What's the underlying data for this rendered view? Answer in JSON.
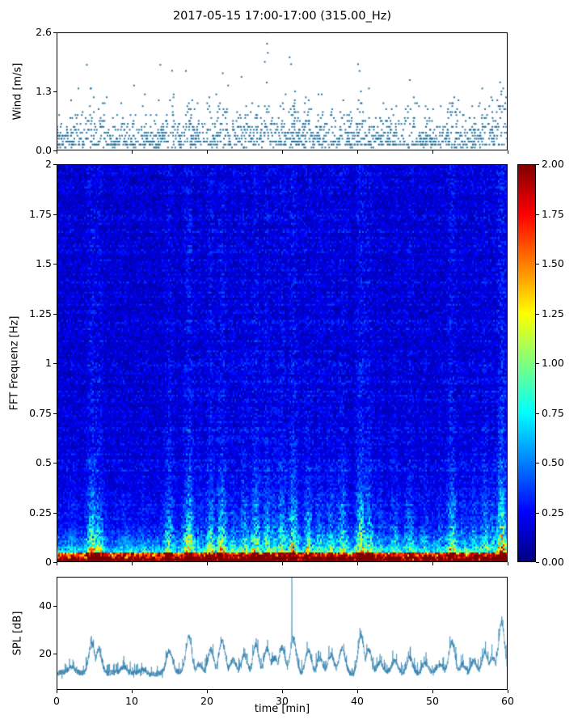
{
  "figure": {
    "title": "2017-05-15 17:00-17:00 (315.00_Hz)",
    "background": "#ffffff"
  },
  "chart_data": [
    {
      "type": "scatter",
      "title": "",
      "ylabel": "Wind [m/s]",
      "xlim": [
        0,
        60
      ],
      "ylim": [
        0.0,
        2.6
      ],
      "yticks": [
        {
          "v": 0.0,
          "label": "0.0"
        },
        {
          "v": 1.3,
          "label": "1.3"
        },
        {
          "v": 2.6,
          "label": "2.6"
        }
      ],
      "marker_color": "#27739e",
      "seed": 7,
      "n_points": 1600,
      "y_quantum": 0.065,
      "typical_range": [
        0.1,
        1.3
      ],
      "summary": "dense quantized scatter of wind speed, mostly 0.1-1.3 m/s, gusty peaks tracking the SPL events",
      "outliers": [
        [
          27.9,
          2.6
        ],
        [
          28.0,
          2.35
        ],
        [
          28.1,
          2.15
        ],
        [
          27.7,
          1.95
        ],
        [
          31.0,
          2.05
        ],
        [
          31.2,
          1.9
        ],
        [
          17.2,
          1.75
        ],
        [
          22.1,
          1.7
        ],
        [
          24.6,
          1.62
        ],
        [
          40.1,
          1.9
        ],
        [
          40.3,
          1.75
        ],
        [
          47.0,
          1.55
        ],
        [
          59.0,
          1.5
        ]
      ]
    },
    {
      "type": "heatmap",
      "ylabel": "FFT Frequenz [Hz]",
      "xlim": [
        0,
        60
      ],
      "ylim": [
        0,
        2
      ],
      "vmin": 0,
      "vmax": 2,
      "colormap": "jet",
      "seed": 11,
      "yticks": [
        {
          "v": 0,
          "label": "0"
        },
        {
          "v": 0.25,
          "label": "0.25"
        },
        {
          "v": 0.5,
          "label": "0.5"
        },
        {
          "v": 0.75,
          "label": "0.75"
        },
        {
          "v": 1,
          "label": "1"
        },
        {
          "v": 1.25,
          "label": "1.25"
        },
        {
          "v": 1.5,
          "label": "1.5"
        },
        {
          "v": 1.75,
          "label": "1.75"
        },
        {
          "v": 2,
          "label": "2"
        }
      ],
      "colorbar": {
        "ticks": [
          {
            "v": 0.0,
            "label": "0.00"
          },
          {
            "v": 0.25,
            "label": "0.25"
          },
          {
            "v": 0.5,
            "label": "0.50"
          },
          {
            "v": 0.75,
            "label": "0.75"
          },
          {
            "v": 1.0,
            "label": "1.00"
          },
          {
            "v": 1.25,
            "label": "1.25"
          },
          {
            "v": 1.5,
            "label": "1.50"
          },
          {
            "v": 1.75,
            "label": "1.75"
          },
          {
            "v": 2.0,
            "label": "2.00"
          }
        ]
      },
      "description": "background 0.05-0.3 (dark blue) with lighter-blue vertical bands at event times; values rise below 0.3 Hz to 0.5-1.2 (cyan/green/yellow streaks) and reach 1.4-2.0 (orange/red) below 0.05 Hz"
    },
    {
      "type": "line",
      "ylabel": "SPL [dB]",
      "xlabel": "time [min]",
      "xlim": [
        0,
        60
      ],
      "ylim": [
        5,
        52
      ],
      "line_color": "rgba(46,127,173,0.85)",
      "seed": 13,
      "baseline": 12,
      "yticks": [
        {
          "v": 20,
          "label": "20"
        },
        {
          "v": 40,
          "label": "40"
        }
      ],
      "xticks": [
        {
          "v": 0,
          "label": "0"
        },
        {
          "v": 10,
          "label": "10"
        },
        {
          "v": 20,
          "label": "20"
        },
        {
          "v": 30,
          "label": "30"
        },
        {
          "v": 40,
          "label": "40"
        },
        {
          "v": 50,
          "label": "50"
        },
        {
          "v": 60,
          "label": "60"
        }
      ],
      "peaks": [
        [
          2,
          14
        ],
        [
          4.7,
          25
        ],
        [
          5.6,
          22
        ],
        [
          9,
          14
        ],
        [
          11.5,
          14
        ],
        [
          15,
          21
        ],
        [
          17.6,
          27
        ],
        [
          19,
          16
        ],
        [
          20.5,
          22
        ],
        [
          22,
          25
        ],
        [
          23.5,
          17
        ],
        [
          25,
          20
        ],
        [
          26.5,
          24
        ],
        [
          28,
          22
        ],
        [
          29,
          18
        ],
        [
          30,
          22
        ],
        [
          31.5,
          26
        ],
        [
          33.5,
          22
        ],
        [
          35,
          18
        ],
        [
          36.5,
          19
        ],
        [
          38,
          22
        ],
        [
          40.5,
          28
        ],
        [
          41.5,
          22
        ],
        [
          43,
          16
        ],
        [
          45,
          17
        ],
        [
          47,
          19
        ],
        [
          49,
          16
        ],
        [
          51,
          15
        ],
        [
          52.6,
          25
        ],
        [
          54,
          16
        ],
        [
          55.5,
          17
        ],
        [
          57,
          20
        ],
        [
          58,
          18
        ],
        [
          59.2,
          33
        ]
      ],
      "spike": {
        "t": 31.3,
        "v": 50
      }
    }
  ]
}
